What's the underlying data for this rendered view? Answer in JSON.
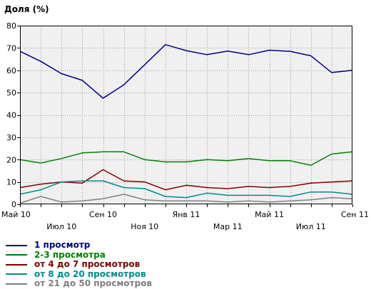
{
  "chart_data": {
    "type": "line",
    "ylabel": "Доля (%)",
    "ylim": [
      0,
      80
    ],
    "yticks": [
      0,
      10,
      20,
      30,
      40,
      50,
      60,
      70,
      80
    ],
    "grid": true,
    "legend_position": "bottom-left",
    "x": [
      "2010-05",
      "2010-06",
      "2010-07",
      "2010-08",
      "2010-09",
      "2010-10",
      "2010-11",
      "2010-12",
      "2011-01",
      "2011-02",
      "2011-03",
      "2011-04",
      "2011-05",
      "2011-06",
      "2011-07",
      "2011-08",
      "2011-09"
    ],
    "x_ticks_upper": [
      {
        "x": "2010-05",
        "label": "Май 10"
      },
      {
        "x": "2010-09",
        "label": "Сен 10"
      },
      {
        "x": "2011-01",
        "label": "Янв 11"
      },
      {
        "x": "2011-05",
        "label": "Май 11"
      },
      {
        "x": "2011-09",
        "label": "Сен 11"
      }
    ],
    "x_ticks_lower": [
      {
        "x": "2010-07",
        "label": "Июл 10"
      },
      {
        "x": "2010-11",
        "label": "Ноя 10"
      },
      {
        "x": "2011-03",
        "label": "Мар 11"
      },
      {
        "x": "2011-07",
        "label": "Июл 11"
      }
    ],
    "series": [
      {
        "name": "1 просмотр",
        "color": "#000080",
        "values": [
          68.5,
          64,
          58.5,
          55.5,
          47.5,
          53.5,
          62.5,
          71.5,
          68.8,
          67,
          68.6,
          67,
          69,
          68.5,
          66.5,
          59,
          60
        ]
      },
      {
        "name": "2-3 просмотра",
        "color": "#008000",
        "values": [
          20,
          18.5,
          20.5,
          23,
          23.5,
          23.5,
          20,
          19,
          19,
          20,
          19.5,
          20.5,
          19.5,
          19.5,
          17.5,
          22.5,
          23.5
        ]
      },
      {
        "name": "от 4 до 7 просмотров",
        "color": "#800000",
        "values": [
          7.5,
          9,
          10,
          9.5,
          15.5,
          10.5,
          10,
          6.5,
          8.5,
          7.5,
          7,
          8,
          7.5,
          8,
          9.5,
          10,
          10.5
        ]
      },
      {
        "name": "от 8 до 20 просмотров",
        "color": "#008b8b",
        "values": [
          4.5,
          6.5,
          10,
          10.5,
          10.5,
          7.5,
          7,
          3.5,
          3,
          5,
          4,
          4,
          4,
          3.5,
          5.5,
          5.5,
          4.5
        ]
      },
      {
        "name": "от 21 до 50 просмотров",
        "color": "#808080",
        "values": [
          0.5,
          3.5,
          1,
          1.5,
          2.5,
          4.5,
          2,
          1.5,
          1.5,
          1.5,
          1,
          1.5,
          1,
          1.5,
          2,
          3,
          2.5
        ]
      }
    ]
  }
}
